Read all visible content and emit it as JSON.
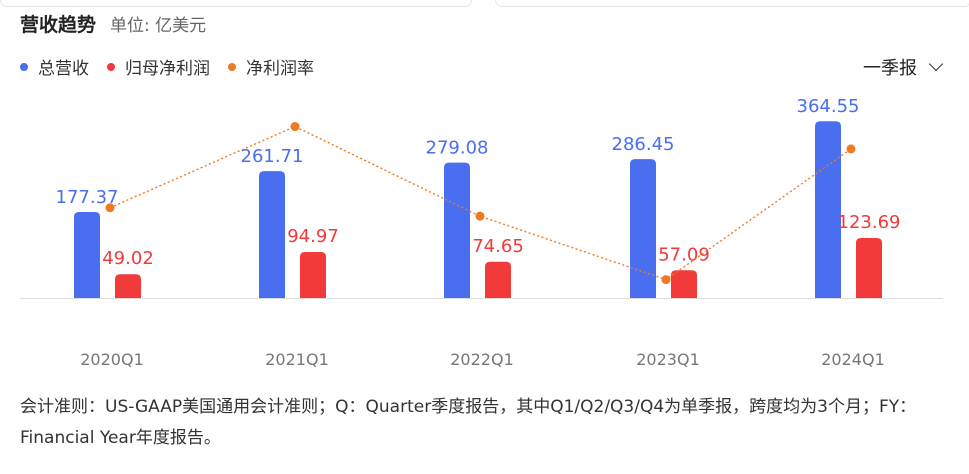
{
  "header": {
    "title": "营收趋势",
    "unit": "单位: 亿美元"
  },
  "legend": [
    {
      "label": "总营收",
      "color": "#4a6ef0"
    },
    {
      "label": "归母净利润",
      "color": "#f23a3a"
    },
    {
      "label": "净利润率",
      "color": "#f07a22"
    }
  ],
  "period_selector": {
    "label": "一季报",
    "icon": "chevron-down-icon"
  },
  "chart_data": {
    "type": "bar",
    "categories": [
      "2020Q1",
      "2021Q1",
      "2022Q1",
      "2023Q1",
      "2024Q1"
    ],
    "series": [
      {
        "name": "总营收",
        "type": "bar",
        "color": "#4a6ef0",
        "values": [
          177.37,
          261.71,
          279.08,
          286.45,
          364.55
        ],
        "labels": [
          "177.37",
          "261.71",
          "279.08",
          "286.45",
          "364.55"
        ]
      },
      {
        "name": "归母净利润",
        "type": "bar",
        "color": "#f23a3a",
        "values": [
          49.02,
          94.97,
          74.65,
          57.09,
          123.69
        ],
        "labels": [
          "49.02",
          "94.97",
          "74.65",
          "57.09",
          "123.69"
        ]
      },
      {
        "name": "净利润率",
        "type": "line",
        "color": "#f07a22",
        "values": [
          27.6,
          36.3,
          26.7,
          19.9,
          33.9
        ]
      }
    ],
    "ylim": [
      0,
      400
    ],
    "grid": false,
    "legend_position": "top-left"
  },
  "footnote": "会计准则：US-GAAP美国通用会计准则；Q：Quarter季度报告，其中Q1/Q2/Q3/Q4为单季报，跨度均为3个月；FY：Financial Year年度报告。"
}
